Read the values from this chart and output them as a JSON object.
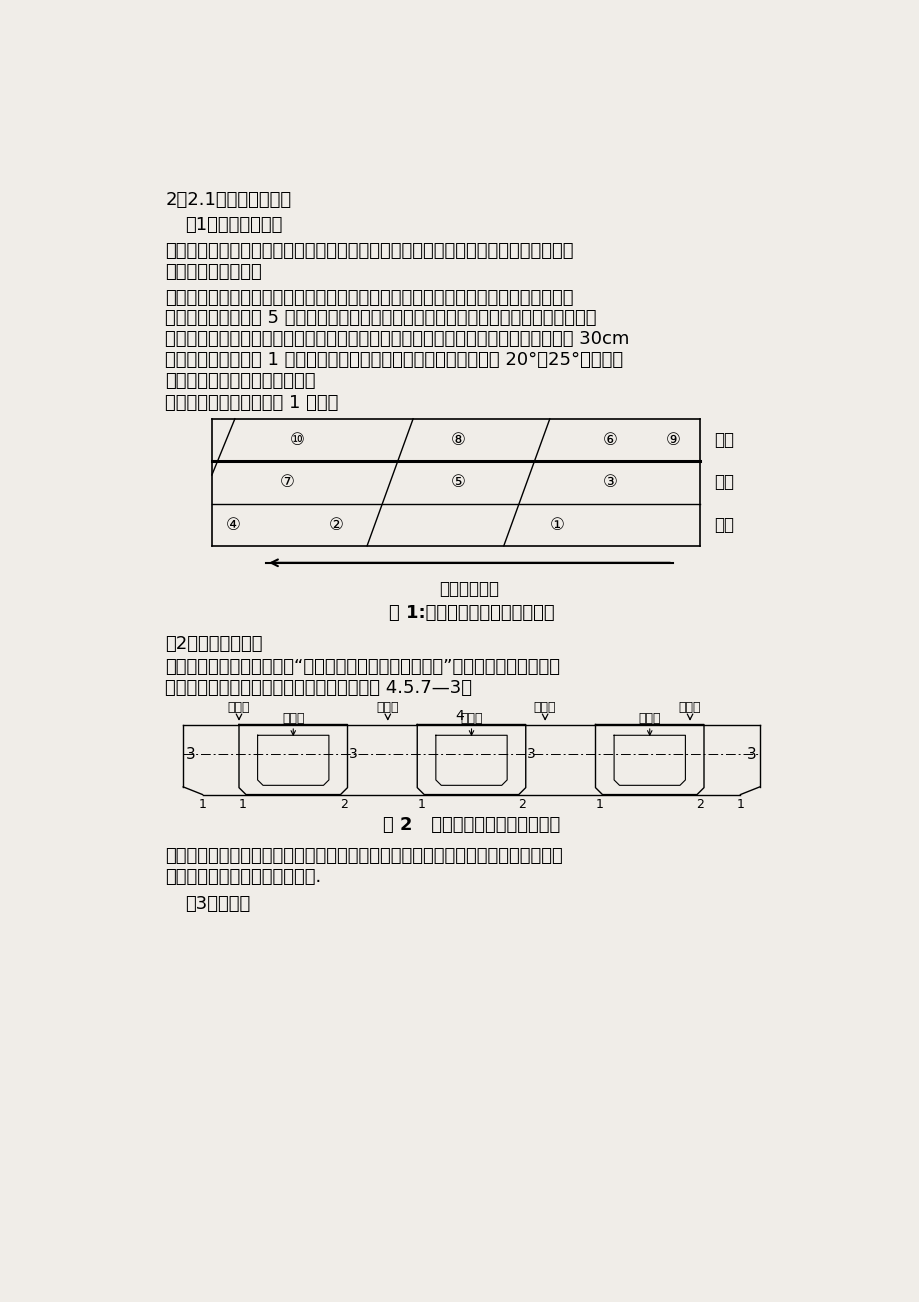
{
  "bg_color": "#f0ede8",
  "text_color": "#000000",
  "title1": "2．2.1混凝土浇筑顺序",
  "subtitle1": "（1）纵向浇筑顺序",
  "para1_line1": "考虑到通航段支架采用贝雷片搞设，且跨度大，其挠度变形较大，混凝土浇筑由系梁两",
  "para1_line2": "端向跨中连续浇筑。",
  "para2_lines": [
    "实体段浇筑为整个断面浇筑，筱梁段就每筱的底板、腹板高度，沿结构横截面以斜坡层",
    "向前推进，分段长度 5 米左右，根据情况适当进行调整距离，保证混凝土不出现冷接缝为",
    "原则，当分段距离远时，为了保证不出现冷接缝，分层的厚度可适当减少。分层厚度在 30cm",
    "左右。每次大约需用 1 小时后，再浇筑上层混凝土。在斜坡层倾斜角 20°～25°。纵向分",
    "段，竖向分层进行混凝土浇筑。"
  ],
  "para3": "每段纵向浇筑顺序如下图 1 所示：",
  "fig1_caption": "图 1:系梁纵向混凝土浇筑顺序图",
  "fig1_direction": "纵向前进方向",
  "label_top": "顶板",
  "label_web": "腹板",
  "label_bot": "底板",
  "subtitle2": "（2）横向浇筑顺序",
  "para4_lines": [
    "混凝土浇筑过程中横向坚持“对称、平衡、均匀、同步进行”的原则，沿梁高方向先",
    "浇筑底板，再浇筑腹板，最后浇筑顶板，如图 4.5.7—3。"
  ],
  "label_discharge": "下料口",
  "fig2_caption": "图 2   系梁横向混凝土浇筑顺序图",
  "para5_lines": [
    "底板浇筑时从每筱的顶板内模预留孔下料。严禁从腹板下料、振捣，避免腹板和底板",
    "倒角部分混凝土出现孔洞和蜂窝."
  ],
  "subtitle3": "（3）拱脚处"
}
